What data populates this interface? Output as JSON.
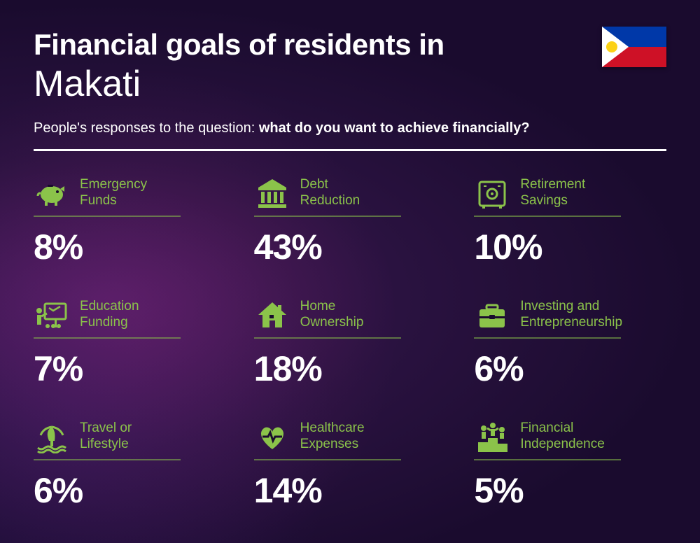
{
  "accent": "#8bc34a",
  "title_line1": "Financial goals of residents in",
  "title_line2": "Makati",
  "subtitle_prefix": "People's responses to the question: ",
  "subtitle_bold": "what do you want to achieve financially?",
  "items": [
    {
      "icon": "piggy",
      "label": "Emergency\nFunds",
      "pct": "8%"
    },
    {
      "icon": "bank",
      "label": "Debt\nReduction",
      "pct": "43%"
    },
    {
      "icon": "safe",
      "label": "Retirement\nSavings",
      "pct": "10%"
    },
    {
      "icon": "education",
      "label": "Education\nFunding",
      "pct": "7%"
    },
    {
      "icon": "house",
      "label": "Home\nOwnership",
      "pct": "18%"
    },
    {
      "icon": "briefcase",
      "label": "Investing and\nEntrepreneurship",
      "pct": "6%"
    },
    {
      "icon": "travel",
      "label": "Travel or\nLifestyle",
      "pct": "6%"
    },
    {
      "icon": "health",
      "label": "Healthcare\nExpenses",
      "pct": "14%"
    },
    {
      "icon": "podium",
      "label": "Financial\nIndependence",
      "pct": "5%"
    }
  ]
}
